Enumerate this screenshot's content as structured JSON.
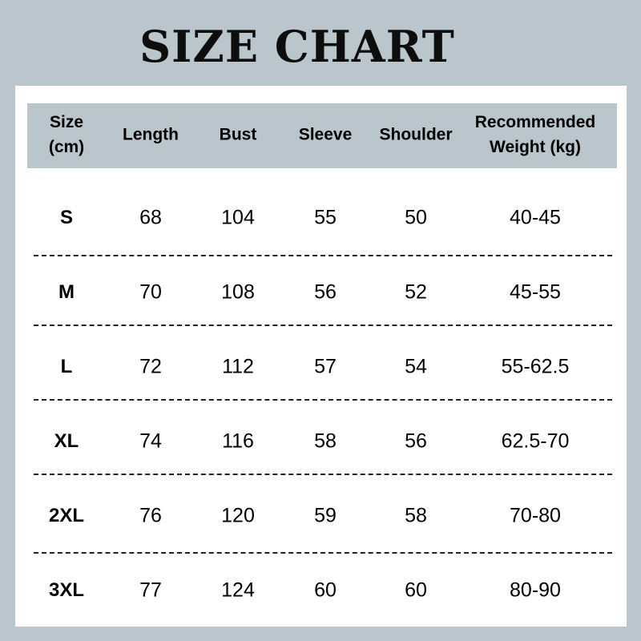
{
  "title": "SIZE CHART",
  "header_color": "#bac5cc",
  "columns": [
    "Size (cm)",
    "Length",
    "Bust",
    "Sleeve",
    "Shoulder",
    "Recommended Weight (kg)"
  ],
  "header_lines": [
    [
      "Size",
      "(cm)"
    ],
    [
      "Length"
    ],
    [
      "Bust"
    ],
    [
      "Sleeve"
    ],
    [
      "Shoulder"
    ],
    [
      "Recommended",
      "Weight (kg)"
    ]
  ],
  "rows": [
    [
      "S",
      "68",
      "104",
      "55",
      "50",
      "40-45"
    ],
    [
      "M",
      "70",
      "108",
      "56",
      "52",
      "45-55"
    ],
    [
      "L",
      "72",
      "112",
      "57",
      "54",
      "55-62.5"
    ],
    [
      "XL",
      "74",
      "116",
      "58",
      "56",
      "62.5-70"
    ],
    [
      "2XL",
      "76",
      "120",
      "59",
      "58",
      "70-80"
    ],
    [
      "3XL",
      "77",
      "124",
      "60",
      "60",
      "80-90"
    ]
  ]
}
